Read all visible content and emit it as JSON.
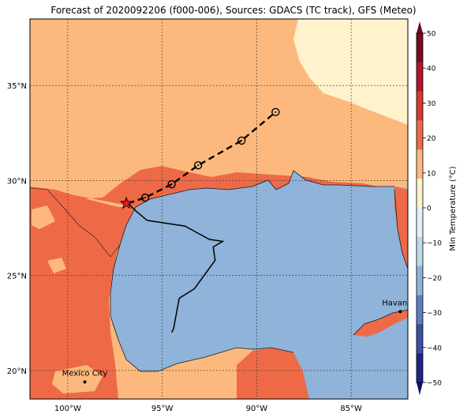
{
  "title": "Forecast of 2020092206 (f000-006), Sources: GDACS (TC track), GFS (Meteo)",
  "map": {
    "lon_range": [
      -102,
      -82
    ],
    "lat_range": [
      18.5,
      38.5
    ],
    "x_ticks": [
      {
        "lon": -100,
        "label": "100°W"
      },
      {
        "lon": -95,
        "label": "95°W"
      },
      {
        "lon": -90,
        "label": "90°W"
      },
      {
        "lon": -85,
        "label": "85°W"
      }
    ],
    "y_ticks": [
      {
        "lat": 20,
        "label": "20°N"
      },
      {
        "lat": 25,
        "label": "25°N"
      },
      {
        "lat": 30,
        "label": "30°N"
      },
      {
        "lat": 35,
        "label": "35°N"
      }
    ],
    "colors": {
      "sea": "#8fb3d9",
      "land_warm": "#fdb97d",
      "land_hot": "#ee6a47",
      "land_mild": "#fff2cc"
    },
    "forecast_track": [
      {
        "lon": -96.8,
        "lat": 28.8
      },
      {
        "lon": -95.9,
        "lat": 29.1
      },
      {
        "lon": -94.5,
        "lat": 29.8
      },
      {
        "lon": -93.1,
        "lat": 30.8
      },
      {
        "lon": -90.8,
        "lat": 32.1
      },
      {
        "lon": -89.0,
        "lat": 33.6
      }
    ],
    "past_track": [
      {
        "lon": -94.5,
        "lat": 22.0
      },
      {
        "lon": -94.4,
        "lat": 22.2
      },
      {
        "lon": -94.1,
        "lat": 23.8
      },
      {
        "lon": -93.3,
        "lat": 24.3
      },
      {
        "lon": -92.2,
        "lat": 25.8
      },
      {
        "lon": -92.3,
        "lat": 26.5
      },
      {
        "lon": -91.8,
        "lat": 26.8
      },
      {
        "lon": -92.5,
        "lat": 26.9
      },
      {
        "lon": -93.8,
        "lat": 27.6
      },
      {
        "lon": -95.8,
        "lat": 27.9
      },
      {
        "lon": -96.4,
        "lat": 28.4
      },
      {
        "lon": -96.8,
        "lat": 28.8
      }
    ],
    "current_position": {
      "lon": -96.9,
      "lat": 28.8
    },
    "cities": [
      {
        "name": "Mexico City",
        "lon": -99.1,
        "lat": 19.4
      },
      {
        "name": "Havana",
        "lon": -82.4,
        "lat": 23.1
      }
    ]
  },
  "colorbar": {
    "label": "Min Temperature (°C)",
    "ticks": [
      "50",
      "40",
      "30",
      "20",
      "10",
      "0",
      "−10",
      "−20",
      "−30",
      "−40",
      "−50"
    ],
    "colors": [
      "#7a0a25",
      "#b0152b",
      "#d73a30",
      "#ee6a47",
      "#fdb97d",
      "#fff2cc",
      "#e3f2f8",
      "#bcdbe9",
      "#8fb3d9",
      "#5b7fbd",
      "#3d4ea3",
      "#1f2582"
    ]
  }
}
